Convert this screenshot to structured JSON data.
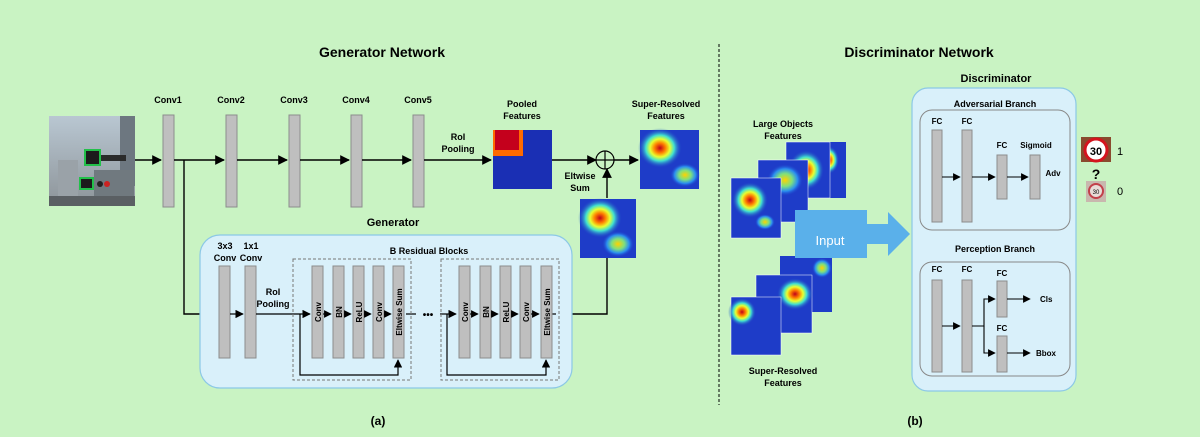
{
  "left": {
    "title": "Generator Network",
    "conv_labels": [
      "Conv1",
      "Conv2",
      "Conv3",
      "Conv4",
      "Conv5"
    ],
    "roi_pooling_top": [
      "RoI",
      "Pooling"
    ],
    "pooled_features": [
      "Pooled",
      "Features"
    ],
    "super_resolved_features": [
      "Super-Resolved",
      "Features"
    ],
    "eltwise_sum": [
      "Eltwise",
      "Sum"
    ],
    "generator": {
      "title": "Generator",
      "conv3x3": [
        "3x3",
        "Conv"
      ],
      "conv1x1": [
        "1x1",
        "Conv"
      ],
      "roi_pooling": [
        "RoI",
        "Pooling"
      ],
      "residual_title": "B Residual Blocks",
      "block_layers": [
        "Conv",
        "BN",
        "ReLU",
        "Conv",
        "Eltwise Sum"
      ],
      "ellipsis": "•••"
    },
    "caption": "(a)"
  },
  "right": {
    "title": "Discriminator Network",
    "large_objects_features": [
      "Large Objects",
      "Features"
    ],
    "super_resolved_features": [
      "Super-Resolved",
      "Features"
    ],
    "input_label": "Input",
    "discriminator": {
      "title": "Discriminator",
      "adversarial_branch": {
        "title": "Adversarial Branch",
        "fc": "FC",
        "sigmoid": "Sigmoid",
        "output": "Adv"
      },
      "perception_branch": {
        "title": "Perception Branch",
        "fc": "FC",
        "outputs": [
          "Cls",
          "Bbox"
        ]
      }
    },
    "sign_text": "30",
    "question": "?",
    "label_real": "1",
    "label_fake": "0",
    "caption": "(b)"
  },
  "colors": {
    "background": "#c9f3c3",
    "panel_fill": "#d9f0fa",
    "panel_stroke": "#8cc8e6",
    "layer_fill": "#bfbfbf",
    "input_arrow": "#5ab0ea"
  }
}
